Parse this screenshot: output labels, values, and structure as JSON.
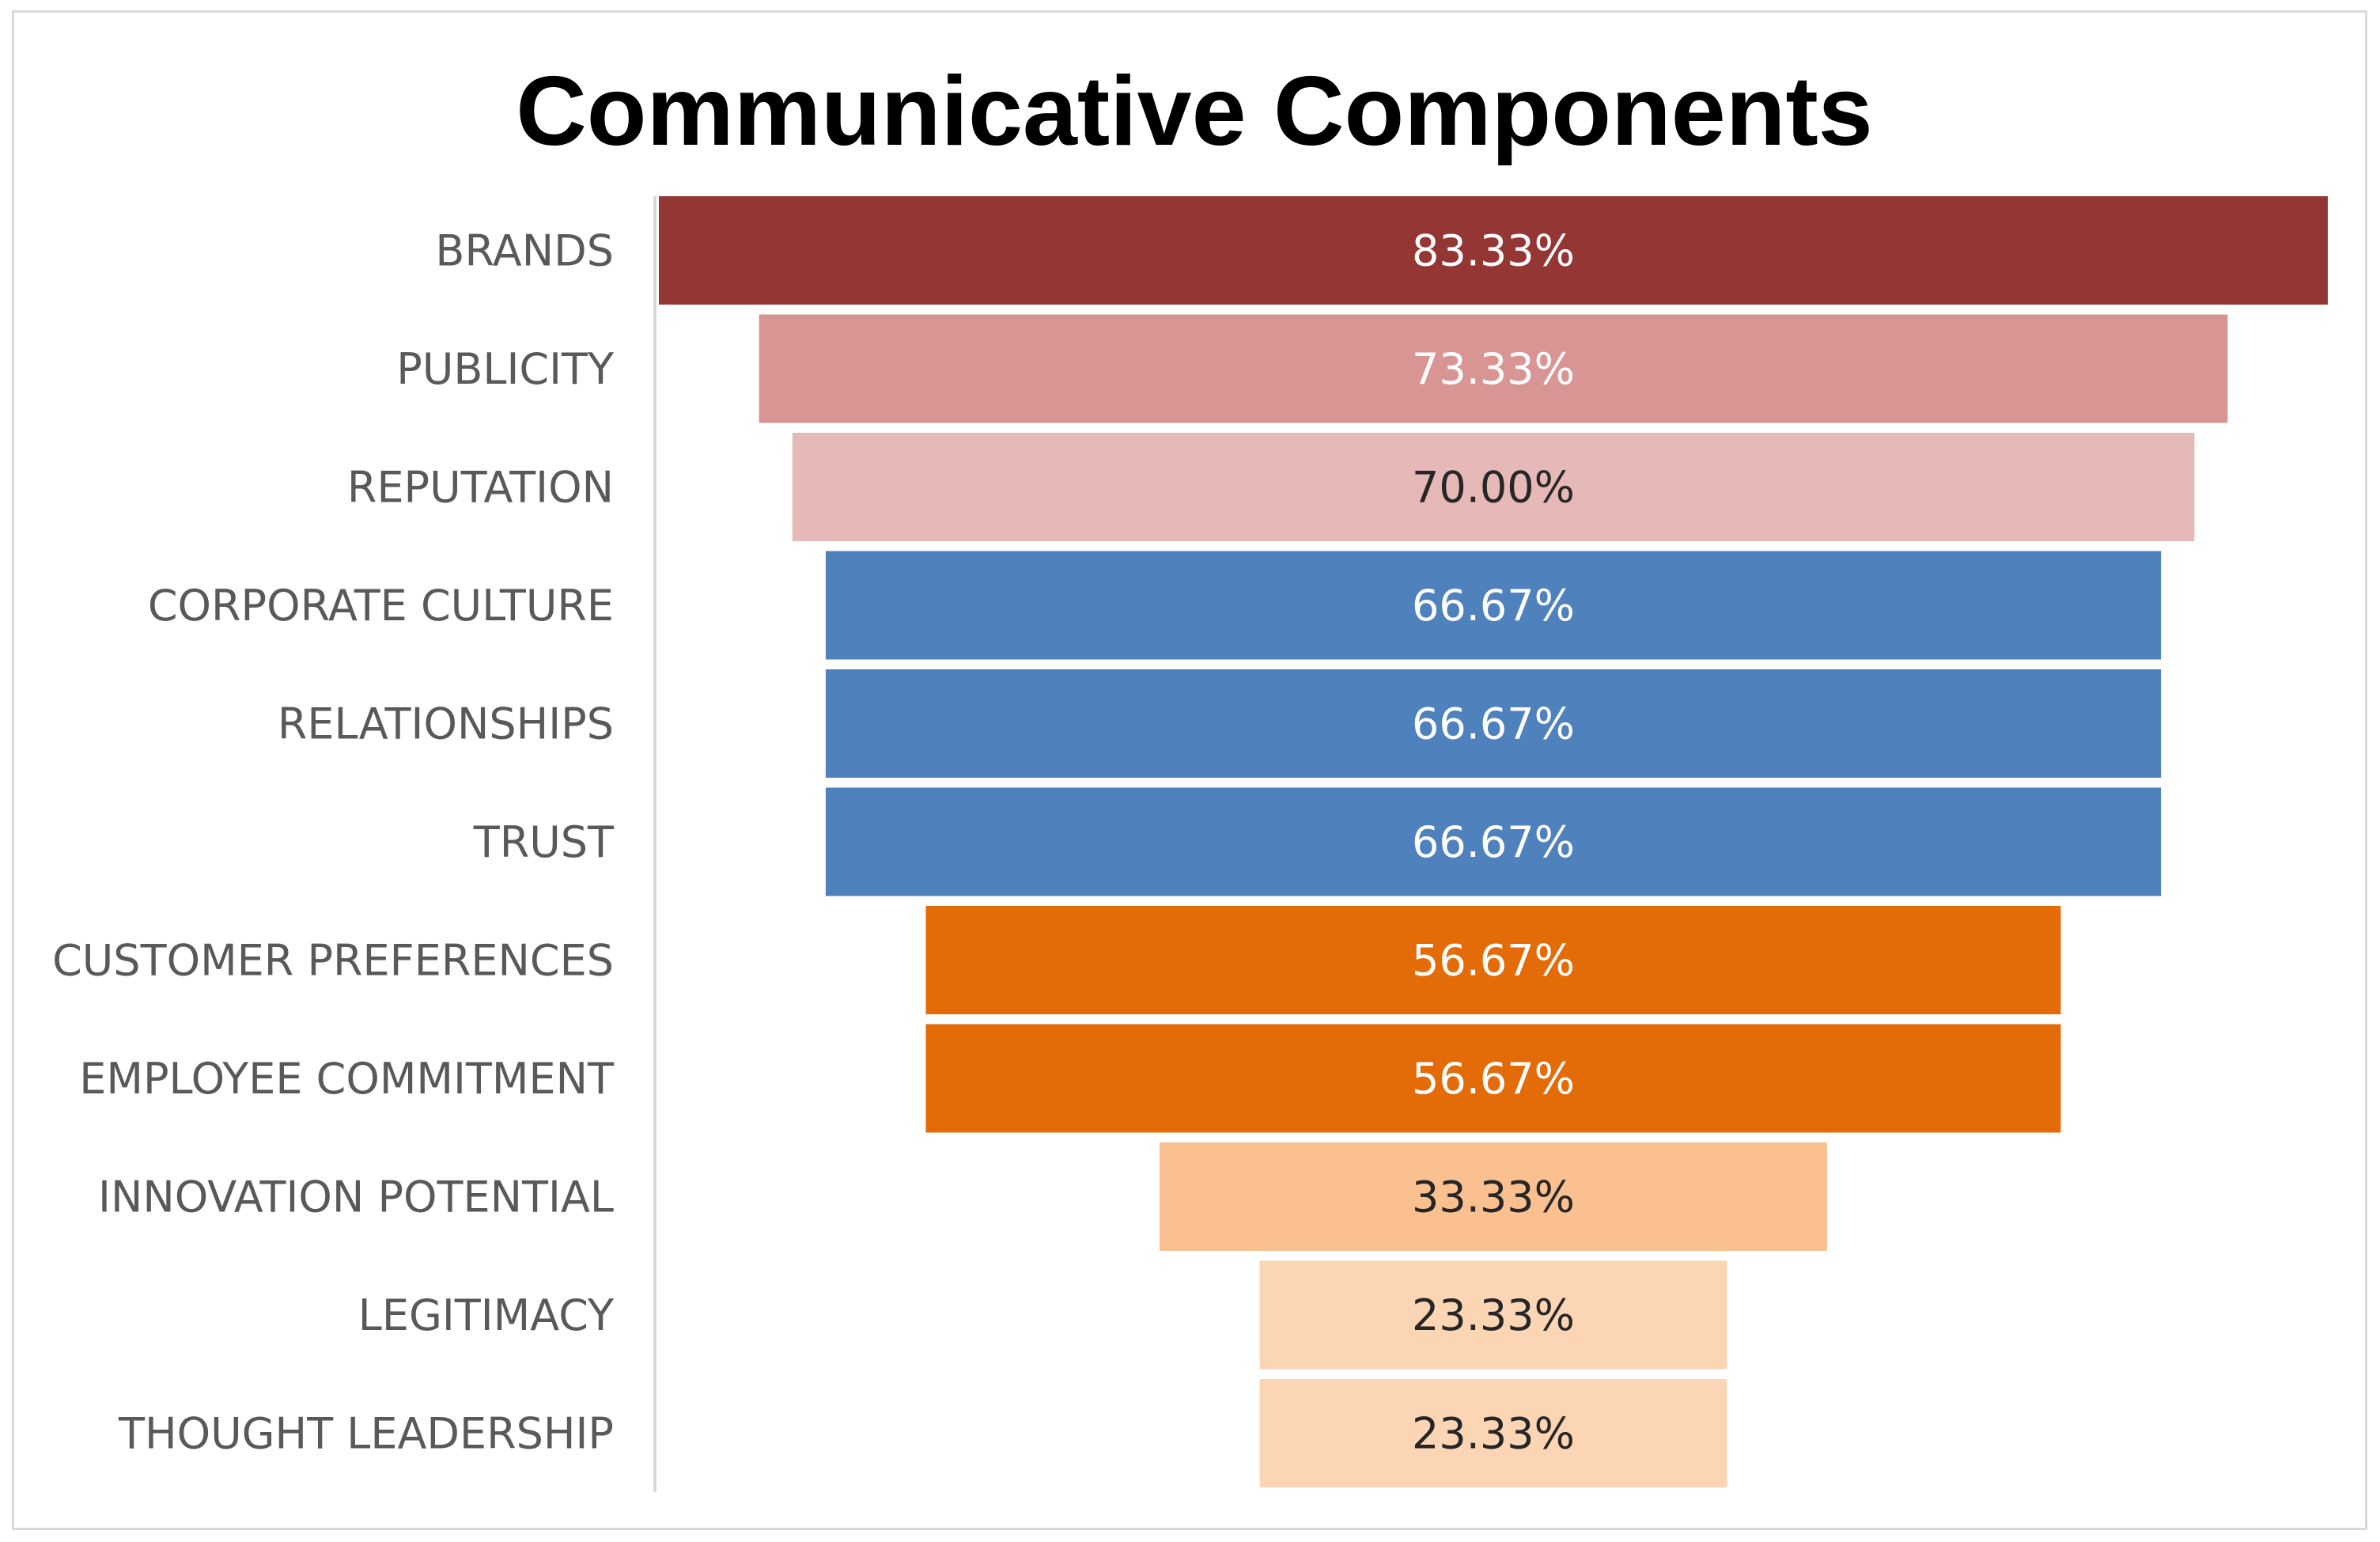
{
  "chart_data": {
    "type": "funnel",
    "title": "Communicative Components",
    "xlabel": "",
    "ylabel": "",
    "categories": [
      "BRANDS",
      "PUBLICITY",
      "REPUTATION",
      "CORPORATE CULTURE",
      "RELATIONSHIPS",
      "TRUST",
      "CUSTOMER PREFERENCES",
      "EMPLOYEE COMMITMENT",
      "INNOVATION POTENTIAL",
      "LEGITIMACY",
      "THOUGHT LEADERSHIP"
    ],
    "values": [
      83.33,
      73.33,
      70.0,
      66.67,
      66.67,
      66.67,
      56.67,
      56.67,
      33.33,
      23.33,
      23.33
    ],
    "value_labels": [
      "83.33%",
      "73.33%",
      "70.00%",
      "66.67%",
      "66.67%",
      "66.67%",
      "56.67%",
      "56.67%",
      "33.33%",
      "23.33%",
      "23.33%"
    ],
    "bar_colors": [
      "#943634",
      "#d99594",
      "#e6b8b7",
      "#4f81bd",
      "#4f81bd",
      "#4f81bd",
      "#e36c09",
      "#e36c09",
      "#fac090",
      "#fcd5b4",
      "#fcd5b4"
    ],
    "label_colors": [
      "#ffffff",
      "#ffffff",
      "#262626",
      "#ffffff",
      "#ffffff",
      "#ffffff",
      "#ffffff",
      "#ffffff",
      "#262626",
      "#262626",
      "#262626"
    ],
    "legend": "none",
    "grid": false
  }
}
